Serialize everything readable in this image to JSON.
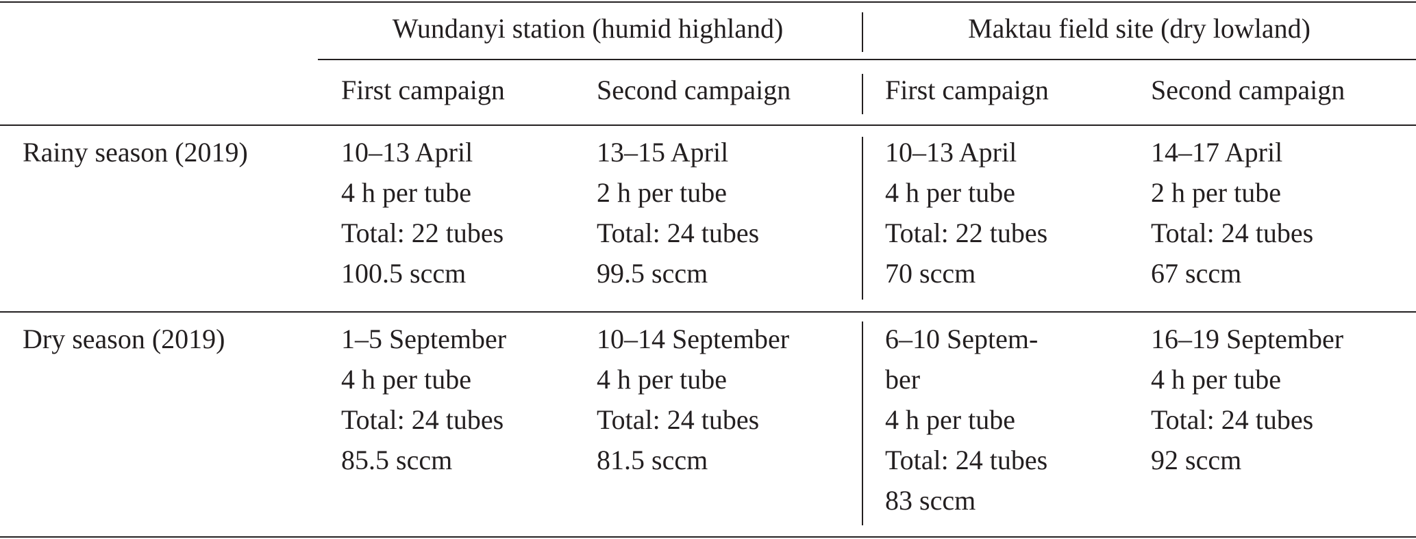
{
  "table": {
    "column_groups": [
      "Wundanyi station (humid highland)",
      "Maktau field site (dry lowland)"
    ],
    "columns": [
      "First campaign",
      "Second campaign",
      "First campaign",
      "Second campaign"
    ],
    "rows": [
      {
        "label": "Rainy season (2019)",
        "cells": [
          [
            "10–13 April",
            "4 h per tube",
            "Total: 22 tubes",
            "100.5 sccm"
          ],
          [
            "13–15 April",
            "2 h per tube",
            "Total: 24 tubes",
            "99.5 sccm"
          ],
          [
            "10–13 April",
            "4 h per tube",
            "Total: 22 tubes",
            "70 sccm"
          ],
          [
            "14–17 April",
            "2 h per tube",
            "Total: 24 tubes",
            "67 sccm"
          ]
        ]
      },
      {
        "label": "Dry season (2019)",
        "cells": [
          [
            "1–5 September",
            "4 h per tube",
            "Total: 24 tubes",
            "85.5 sccm"
          ],
          [
            "10–14 September",
            "4 h per tube",
            "Total: 24 tubes",
            "81.5 sccm"
          ],
          [
            "6–10 Septem-",
            "ber",
            "4 h per tube",
            "Total: 24 tubes",
            "83 sccm"
          ],
          [
            "16–19 September",
            "4 h per tube",
            "Total: 24 tubes",
            "92 sccm"
          ]
        ]
      }
    ]
  }
}
